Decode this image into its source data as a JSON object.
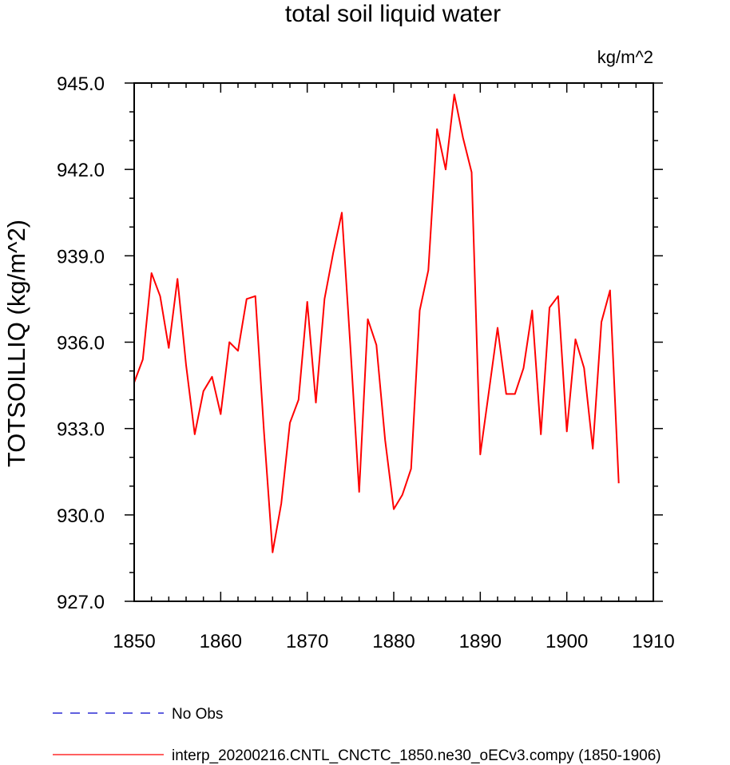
{
  "chart_data": {
    "type": "line",
    "title": "total soil liquid water",
    "units": "kg/m^2",
    "ylabel": "TOTSOILLIQ  (kg/m^2)",
    "xlabel": "",
    "xlim": [
      1850,
      1910
    ],
    "ylim": [
      927.0,
      945.0
    ],
    "xticks": [
      1850,
      1860,
      1870,
      1880,
      1890,
      1900,
      1910
    ],
    "xtick_labels": [
      "1850",
      "1860",
      "1870",
      "1880",
      "1890",
      "1900",
      "1910"
    ],
    "yticks": [
      927.0,
      930.0,
      933.0,
      936.0,
      939.0,
      942.0,
      945.0
    ],
    "ytick_labels": [
      "927.0",
      "930.0",
      "933.0",
      "936.0",
      "939.0",
      "942.0",
      "945.0"
    ],
    "grid": false,
    "legend_position": "bottom",
    "series": [
      {
        "name": "No Obs",
        "color": "#0000cc",
        "dash": "dashed",
        "x": [],
        "y": []
      },
      {
        "name": "interp_20200216.CNTL_CNCTC_1850.ne30_oECv3.compy (1850-1906)",
        "color": "#ff0000",
        "dash": "solid",
        "x": [
          1850,
          1851,
          1852,
          1853,
          1854,
          1855,
          1856,
          1857,
          1858,
          1859,
          1860,
          1861,
          1862,
          1863,
          1864,
          1865,
          1866,
          1867,
          1868,
          1869,
          1870,
          1871,
          1872,
          1873,
          1874,
          1875,
          1876,
          1877,
          1878,
          1879,
          1880,
          1881,
          1882,
          1883,
          1884,
          1885,
          1886,
          1887,
          1888,
          1889,
          1890,
          1891,
          1892,
          1893,
          1894,
          1895,
          1896,
          1897,
          1898,
          1899,
          1900,
          1901,
          1902,
          1903,
          1904,
          1905,
          1906
        ],
        "y": [
          934.6,
          935.4,
          938.4,
          937.6,
          935.8,
          938.2,
          935.2,
          932.8,
          934.3,
          934.8,
          933.5,
          936.0,
          935.7,
          937.5,
          937.6,
          932.9,
          928.7,
          930.4,
          933.2,
          934.0,
          937.4,
          933.9,
          937.5,
          939.1,
          940.5,
          935.8,
          930.8,
          936.8,
          935.9,
          932.6,
          930.2,
          930.7,
          931.6,
          937.1,
          938.5,
          943.4,
          942.0,
          944.6,
          943.1,
          941.9,
          932.1,
          934.3,
          936.5,
          934.2,
          934.2,
          935.1,
          937.1,
          932.8,
          937.2,
          937.6,
          932.9,
          936.1,
          935.1,
          932.3,
          936.7,
          937.8,
          931.1
        ]
      }
    ]
  }
}
